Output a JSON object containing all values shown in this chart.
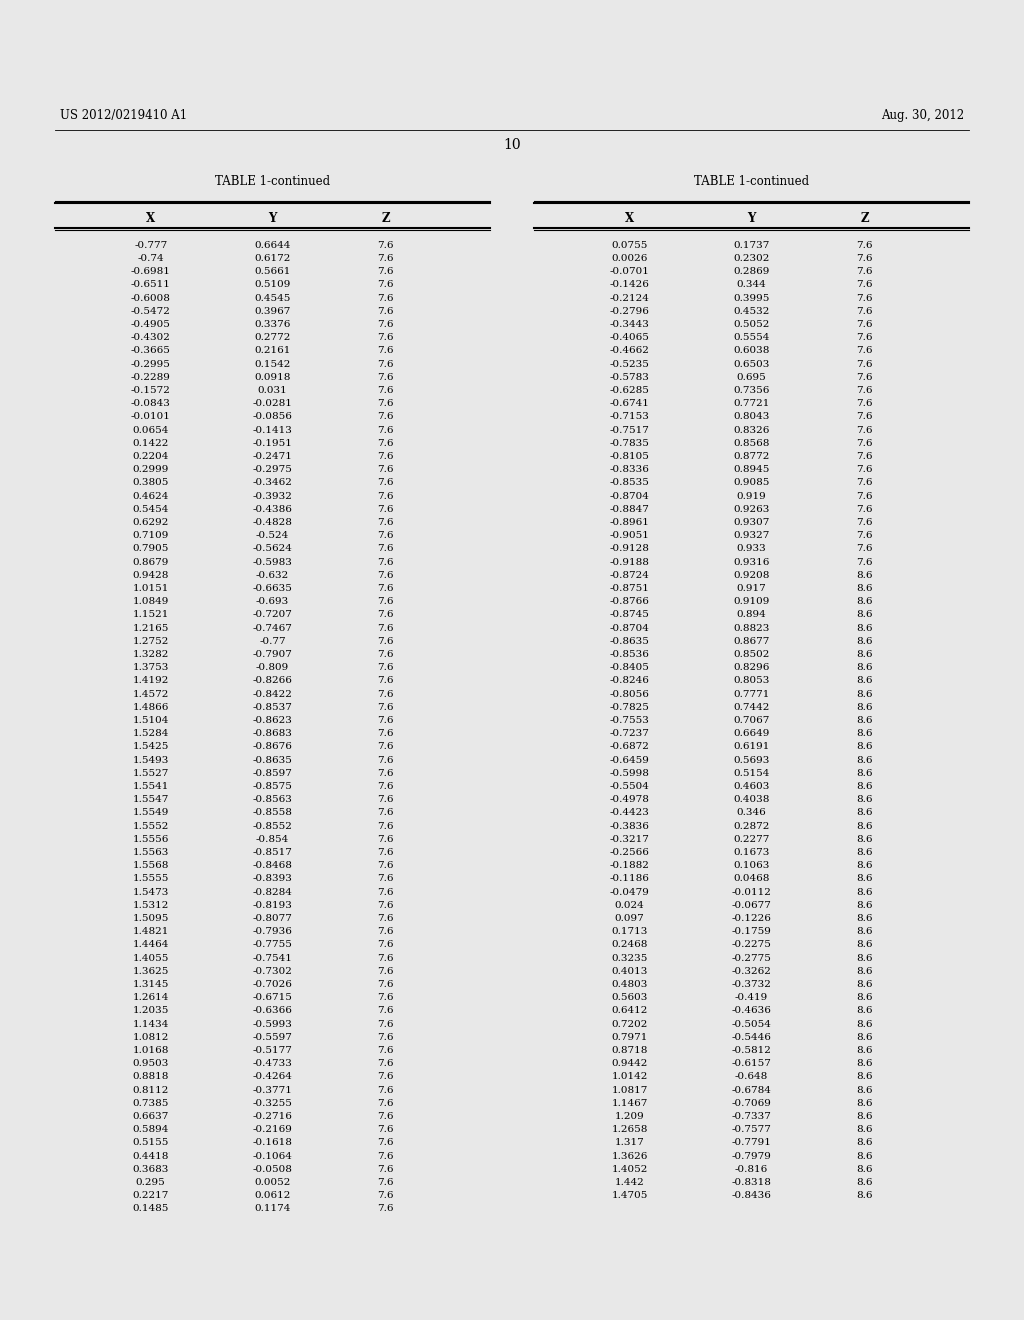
{
  "header_left": "US 2012/0219410 A1",
  "header_right": "Aug. 30, 2012",
  "page_number": "10",
  "table_title": "TABLE 1-continued",
  "col_headers": [
    "X",
    "Y",
    "Z"
  ],
  "bg_color": "#e8e8e8",
  "left_data": [
    [
      "-0.777",
      "0.6644",
      "7.6"
    ],
    [
      "-0.74",
      "0.6172",
      "7.6"
    ],
    [
      "-0.6981",
      "0.5661",
      "7.6"
    ],
    [
      "-0.6511",
      "0.5109",
      "7.6"
    ],
    [
      "-0.6008",
      "0.4545",
      "7.6"
    ],
    [
      "-0.5472",
      "0.3967",
      "7.6"
    ],
    [
      "-0.4905",
      "0.3376",
      "7.6"
    ],
    [
      "-0.4302",
      "0.2772",
      "7.6"
    ],
    [
      "-0.3665",
      "0.2161",
      "7.6"
    ],
    [
      "-0.2995",
      "0.1542",
      "7.6"
    ],
    [
      "-0.2289",
      "0.0918",
      "7.6"
    ],
    [
      "-0.1572",
      "0.031",
      "7.6"
    ],
    [
      "-0.0843",
      "-0.0281",
      "7.6"
    ],
    [
      "-0.0101",
      "-0.0856",
      "7.6"
    ],
    [
      "0.0654",
      "-0.1413",
      "7.6"
    ],
    [
      "0.1422",
      "-0.1951",
      "7.6"
    ],
    [
      "0.2204",
      "-0.2471",
      "7.6"
    ],
    [
      "0.2999",
      "-0.2975",
      "7.6"
    ],
    [
      "0.3805",
      "-0.3462",
      "7.6"
    ],
    [
      "0.4624",
      "-0.3932",
      "7.6"
    ],
    [
      "0.5454",
      "-0.4386",
      "7.6"
    ],
    [
      "0.6292",
      "-0.4828",
      "7.6"
    ],
    [
      "0.7109",
      "-0.524",
      "7.6"
    ],
    [
      "0.7905",
      "-0.5624",
      "7.6"
    ],
    [
      "0.8679",
      "-0.5983",
      "7.6"
    ],
    [
      "0.9428",
      "-0.632",
      "7.6"
    ],
    [
      "1.0151",
      "-0.6635",
      "7.6"
    ],
    [
      "1.0849",
      "-0.693",
      "7.6"
    ],
    [
      "1.1521",
      "-0.7207",
      "7.6"
    ],
    [
      "1.2165",
      "-0.7467",
      "7.6"
    ],
    [
      "1.2752",
      "-0.77",
      "7.6"
    ],
    [
      "1.3282",
      "-0.7907",
      "7.6"
    ],
    [
      "1.3753",
      "-0.809",
      "7.6"
    ],
    [
      "1.4192",
      "-0.8266",
      "7.6"
    ],
    [
      "1.4572",
      "-0.8422",
      "7.6"
    ],
    [
      "1.4866",
      "-0.8537",
      "7.6"
    ],
    [
      "1.5104",
      "-0.8623",
      "7.6"
    ],
    [
      "1.5284",
      "-0.8683",
      "7.6"
    ],
    [
      "1.5425",
      "-0.8676",
      "7.6"
    ],
    [
      "1.5493",
      "-0.8635",
      "7.6"
    ],
    [
      "1.5527",
      "-0.8597",
      "7.6"
    ],
    [
      "1.5541",
      "-0.8575",
      "7.6"
    ],
    [
      "1.5547",
      "-0.8563",
      "7.6"
    ],
    [
      "1.5549",
      "-0.8558",
      "7.6"
    ],
    [
      "1.5552",
      "-0.8552",
      "7.6"
    ],
    [
      "1.5556",
      "-0.854",
      "7.6"
    ],
    [
      "1.5563",
      "-0.8517",
      "7.6"
    ],
    [
      "1.5568",
      "-0.8468",
      "7.6"
    ],
    [
      "1.5555",
      "-0.8393",
      "7.6"
    ],
    [
      "1.5473",
      "-0.8284",
      "7.6"
    ],
    [
      "1.5312",
      "-0.8193",
      "7.6"
    ],
    [
      "1.5095",
      "-0.8077",
      "7.6"
    ],
    [
      "1.4821",
      "-0.7936",
      "7.6"
    ],
    [
      "1.4464",
      "-0.7755",
      "7.6"
    ],
    [
      "1.4055",
      "-0.7541",
      "7.6"
    ],
    [
      "1.3625",
      "-0.7302",
      "7.6"
    ],
    [
      "1.3145",
      "-0.7026",
      "7.6"
    ],
    [
      "1.2614",
      "-0.6715",
      "7.6"
    ],
    [
      "1.2035",
      "-0.6366",
      "7.6"
    ],
    [
      "1.1434",
      "-0.5993",
      "7.6"
    ],
    [
      "1.0812",
      "-0.5597",
      "7.6"
    ],
    [
      "1.0168",
      "-0.5177",
      "7.6"
    ],
    [
      "0.9503",
      "-0.4733",
      "7.6"
    ],
    [
      "0.8818",
      "-0.4264",
      "7.6"
    ],
    [
      "0.8112",
      "-0.3771",
      "7.6"
    ],
    [
      "0.7385",
      "-0.3255",
      "7.6"
    ],
    [
      "0.6637",
      "-0.2716",
      "7.6"
    ],
    [
      "0.5894",
      "-0.2169",
      "7.6"
    ],
    [
      "0.5155",
      "-0.1618",
      "7.6"
    ],
    [
      "0.4418",
      "-0.1064",
      "7.6"
    ],
    [
      "0.3683",
      "-0.0508",
      "7.6"
    ],
    [
      "0.295",
      "0.0052",
      "7.6"
    ],
    [
      "0.2217",
      "0.0612",
      "7.6"
    ],
    [
      "0.1485",
      "0.1174",
      "7.6"
    ]
  ],
  "right_data": [
    [
      "0.0755",
      "0.1737",
      "7.6"
    ],
    [
      "0.0026",
      "0.2302",
      "7.6"
    ],
    [
      "-0.0701",
      "0.2869",
      "7.6"
    ],
    [
      "-0.1426",
      "0.344",
      "7.6"
    ],
    [
      "-0.2124",
      "0.3995",
      "7.6"
    ],
    [
      "-0.2796",
      "0.4532",
      "7.6"
    ],
    [
      "-0.3443",
      "0.5052",
      "7.6"
    ],
    [
      "-0.4065",
      "0.5554",
      "7.6"
    ],
    [
      "-0.4662",
      "0.6038",
      "7.6"
    ],
    [
      "-0.5235",
      "0.6503",
      "7.6"
    ],
    [
      "-0.5783",
      "0.695",
      "7.6"
    ],
    [
      "-0.6285",
      "0.7356",
      "7.6"
    ],
    [
      "-0.6741",
      "0.7721",
      "7.6"
    ],
    [
      "-0.7153",
      "0.8043",
      "7.6"
    ],
    [
      "-0.7517",
      "0.8326",
      "7.6"
    ],
    [
      "-0.7835",
      "0.8568",
      "7.6"
    ],
    [
      "-0.8105",
      "0.8772",
      "7.6"
    ],
    [
      "-0.8336",
      "0.8945",
      "7.6"
    ],
    [
      "-0.8535",
      "0.9085",
      "7.6"
    ],
    [
      "-0.8704",
      "0.919",
      "7.6"
    ],
    [
      "-0.8847",
      "0.9263",
      "7.6"
    ],
    [
      "-0.8961",
      "0.9307",
      "7.6"
    ],
    [
      "-0.9051",
      "0.9327",
      "7.6"
    ],
    [
      "-0.9128",
      "0.933",
      "7.6"
    ],
    [
      "-0.9188",
      "0.9316",
      "7.6"
    ],
    [
      "-0.8724",
      "0.9208",
      "8.6"
    ],
    [
      "-0.8751",
      "0.917",
      "8.6"
    ],
    [
      "-0.8766",
      "0.9109",
      "8.6"
    ],
    [
      "-0.8745",
      "0.894",
      "8.6"
    ],
    [
      "-0.8704",
      "0.8823",
      "8.6"
    ],
    [
      "-0.8635",
      "0.8677",
      "8.6"
    ],
    [
      "-0.8536",
      "0.8502",
      "8.6"
    ],
    [
      "-0.8405",
      "0.8296",
      "8.6"
    ],
    [
      "-0.8246",
      "0.8053",
      "8.6"
    ],
    [
      "-0.8056",
      "0.7771",
      "8.6"
    ],
    [
      "-0.7825",
      "0.7442",
      "8.6"
    ],
    [
      "-0.7553",
      "0.7067",
      "8.6"
    ],
    [
      "-0.7237",
      "0.6649",
      "8.6"
    ],
    [
      "-0.6872",
      "0.6191",
      "8.6"
    ],
    [
      "-0.6459",
      "0.5693",
      "8.6"
    ],
    [
      "-0.5998",
      "0.5154",
      "8.6"
    ],
    [
      "-0.5504",
      "0.4603",
      "8.6"
    ],
    [
      "-0.4978",
      "0.4038",
      "8.6"
    ],
    [
      "-0.4423",
      "0.346",
      "8.6"
    ],
    [
      "-0.3836",
      "0.2872",
      "8.6"
    ],
    [
      "-0.3217",
      "0.2277",
      "8.6"
    ],
    [
      "-0.2566",
      "0.1673",
      "8.6"
    ],
    [
      "-0.1882",
      "0.1063",
      "8.6"
    ],
    [
      "-0.1186",
      "0.0468",
      "8.6"
    ],
    [
      "-0.0479",
      "-0.0112",
      "8.6"
    ],
    [
      "0.024",
      "-0.0677",
      "8.6"
    ],
    [
      "0.097",
      "-0.1226",
      "8.6"
    ],
    [
      "0.1713",
      "-0.1759",
      "8.6"
    ],
    [
      "0.2468",
      "-0.2275",
      "8.6"
    ],
    [
      "0.3235",
      "-0.2775",
      "8.6"
    ],
    [
      "0.4013",
      "-0.3262",
      "8.6"
    ],
    [
      "0.4803",
      "-0.3732",
      "8.6"
    ],
    [
      "0.5603",
      "-0.419",
      "8.6"
    ],
    [
      "0.6412",
      "-0.4636",
      "8.6"
    ],
    [
      "0.7202",
      "-0.5054",
      "8.6"
    ],
    [
      "0.7971",
      "-0.5446",
      "8.6"
    ],
    [
      "0.8718",
      "-0.5812",
      "8.6"
    ],
    [
      "0.9442",
      "-0.6157",
      "8.6"
    ],
    [
      "1.0142",
      "-0.648",
      "8.6"
    ],
    [
      "1.0817",
      "-0.6784",
      "8.6"
    ],
    [
      "1.1467",
      "-0.7069",
      "8.6"
    ],
    [
      "1.209",
      "-0.7337",
      "8.6"
    ],
    [
      "1.2658",
      "-0.7577",
      "8.6"
    ],
    [
      "1.317",
      "-0.7791",
      "8.6"
    ],
    [
      "1.3626",
      "-0.7979",
      "8.6"
    ],
    [
      "1.4052",
      "-0.816",
      "8.6"
    ],
    [
      "1.442",
      "-0.8318",
      "8.6"
    ],
    [
      "1.4705",
      "-0.8436",
      "8.6"
    ]
  ]
}
